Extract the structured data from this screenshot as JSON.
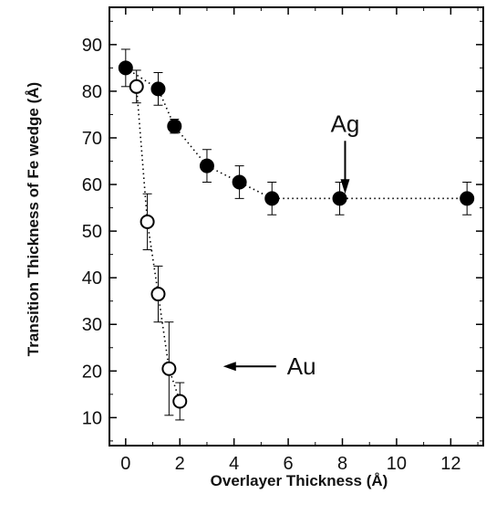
{
  "chart_data": {
    "type": "scatter",
    "xlabel": "Overlayer Thickness (Å)",
    "ylabel": "Transition Thickness of Fe wedge (Å)",
    "xlim": [
      -0.6,
      13.2
    ],
    "ylim": [
      4,
      98
    ],
    "xticks": [
      0,
      2,
      4,
      6,
      8,
      10,
      12
    ],
    "yticks": [
      10,
      20,
      30,
      40,
      50,
      60,
      70,
      80,
      90
    ],
    "grid": false,
    "series": [
      {
        "name": "Ag",
        "marker": "filled-circle",
        "color": "#000000",
        "x": [
          0,
          1.2,
          1.8,
          3.0,
          4.2,
          5.4,
          7.9,
          12.6
        ],
        "y": [
          85,
          80.5,
          72.5,
          64,
          60.5,
          57,
          57,
          57
        ],
        "err": [
          4,
          3.5,
          1.5,
          3.5,
          3.5,
          3.5,
          3.5,
          3.5
        ]
      },
      {
        "name": "Au",
        "marker": "open-circle",
        "color": "#000000",
        "x": [
          0.4,
          0.8,
          1.2,
          1.6,
          2.0
        ],
        "y": [
          81,
          52,
          36.5,
          20.5,
          13.5
        ],
        "err": [
          3.5,
          6,
          6,
          10,
          4
        ]
      }
    ],
    "annotations": [
      {
        "text": "Ag",
        "arrow": "down",
        "target": [
          8.1,
          58
        ]
      },
      {
        "text": "Au",
        "arrow": "left",
        "target": [
          3.6,
          21
        ]
      }
    ]
  }
}
